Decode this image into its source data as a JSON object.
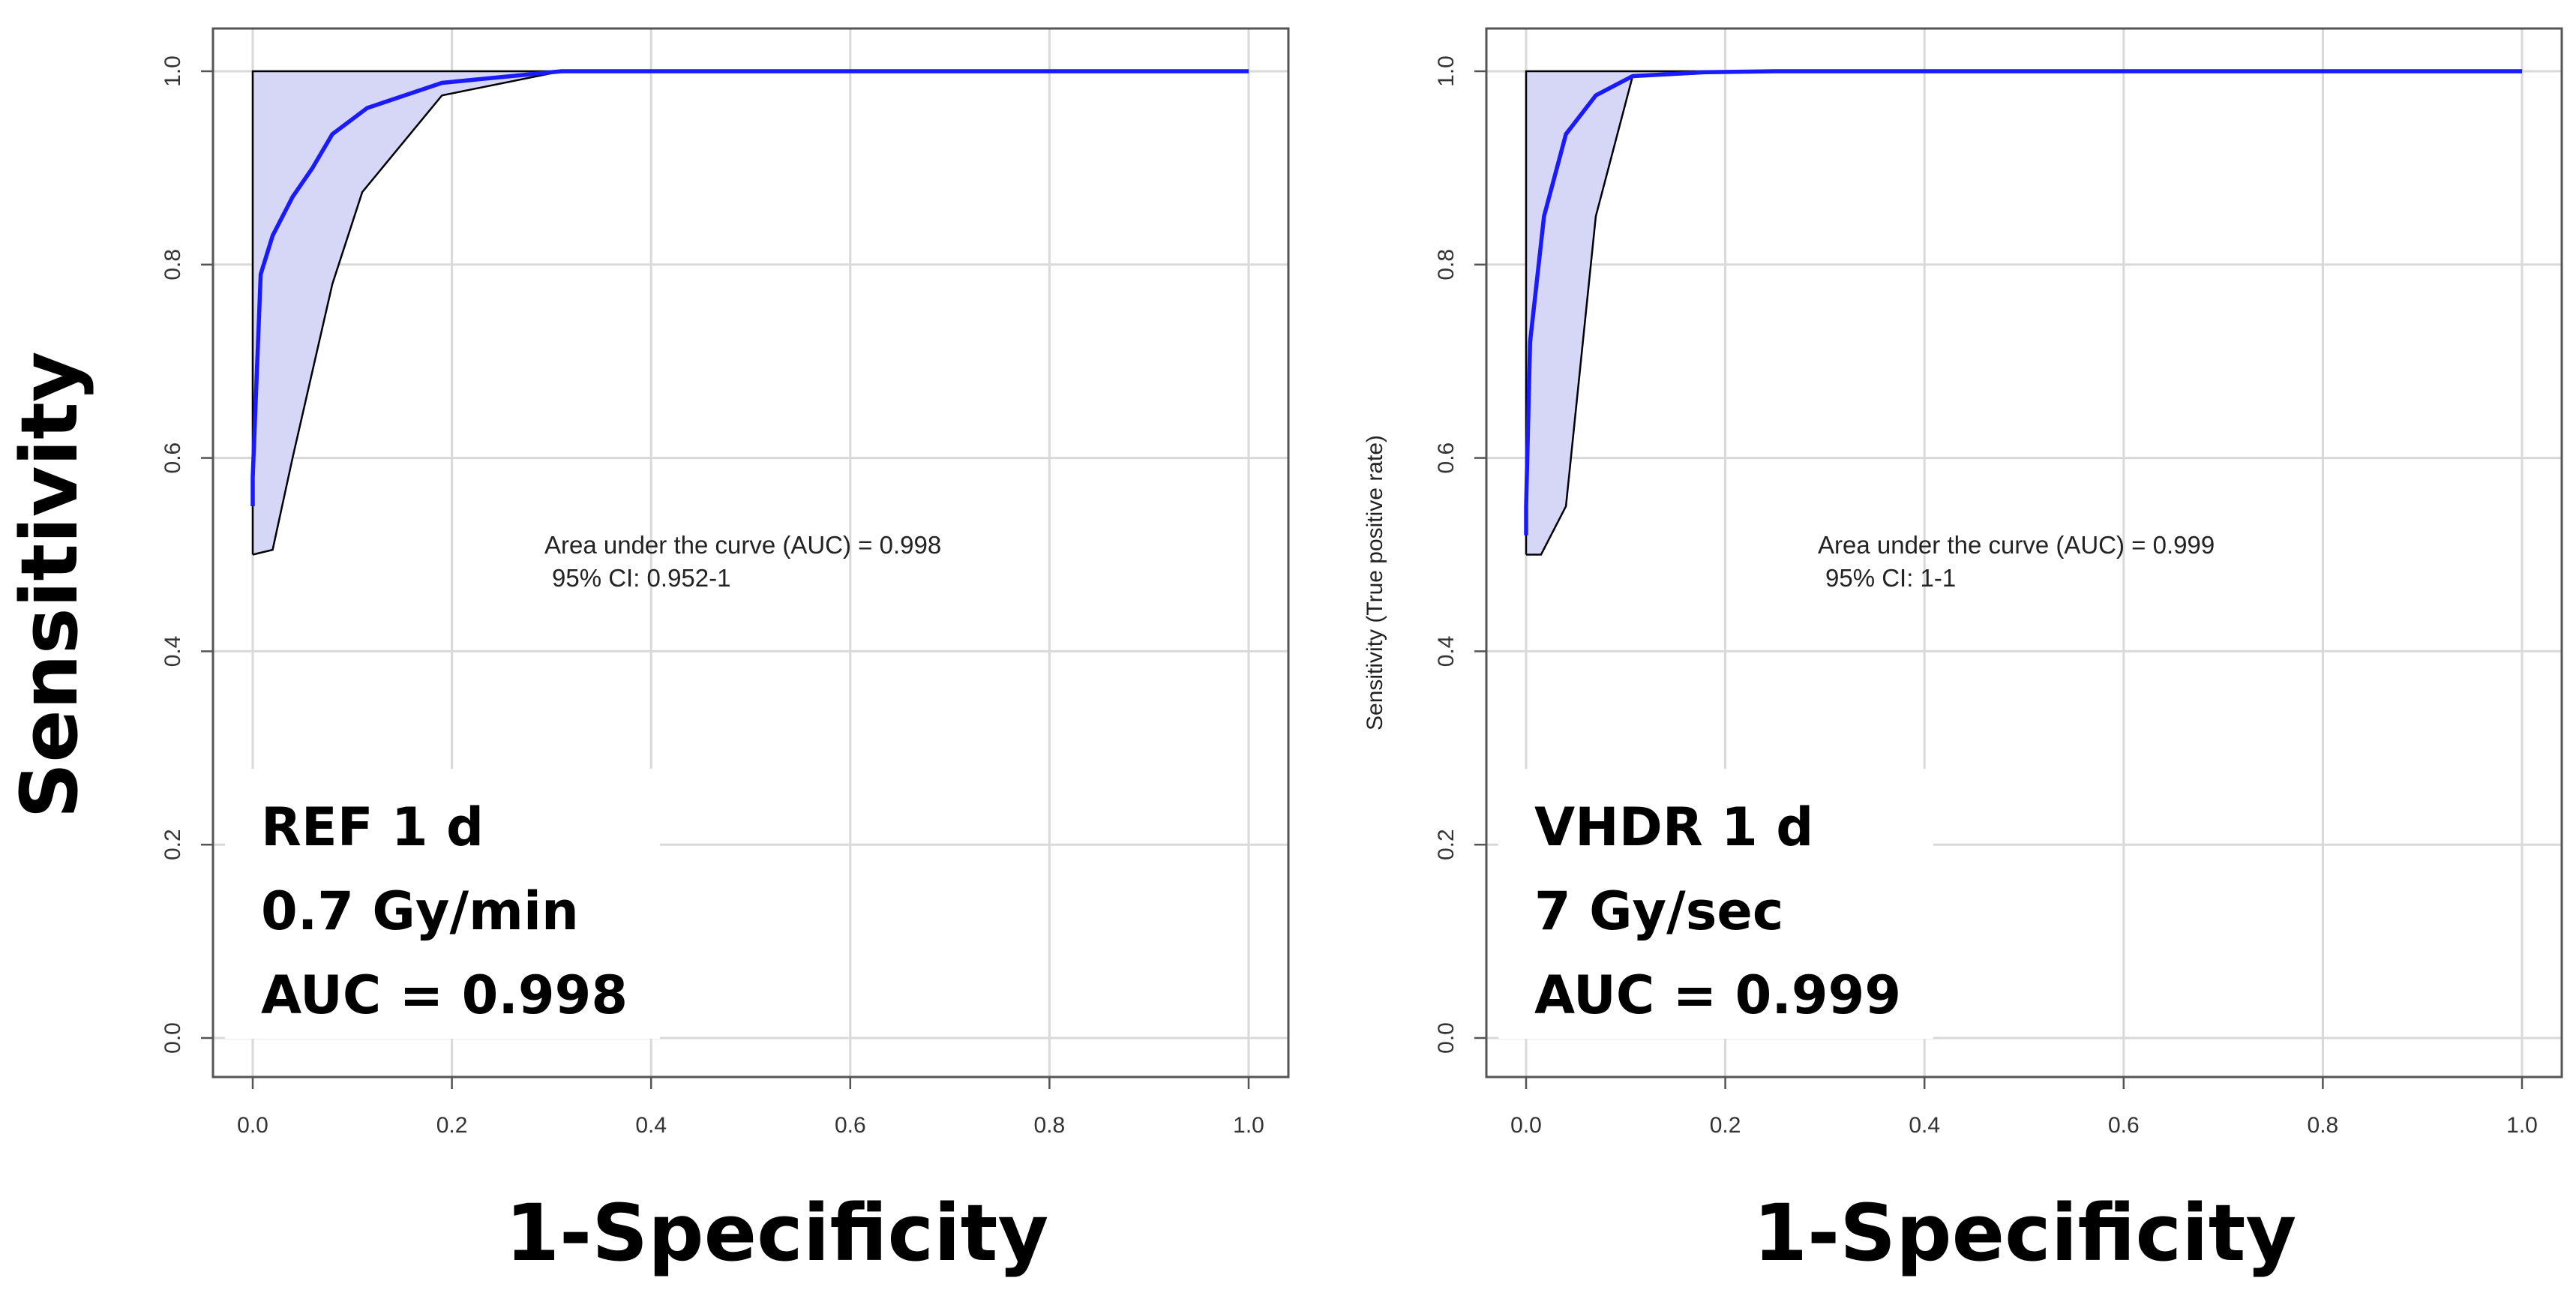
{
  "figure": {
    "left_ylabel": "Sensitivity",
    "colors": {
      "roc": "#1a1aff",
      "ci_fill": "#d6d6f7",
      "ci_line": "#000000",
      "grid": "#d9d9d9",
      "frame": "#555555"
    }
  },
  "chart_data": [
    {
      "type": "line",
      "xlabel": "1-Specificity",
      "ylabel": "",
      "xlim": [
        0,
        1
      ],
      "ylim": [
        0,
        1
      ],
      "x_ticks": [
        "0.0",
        "0.2",
        "0.4",
        "0.6",
        "0.8",
        "1.0"
      ],
      "y_ticks": [
        "0.0",
        "0.2",
        "0.4",
        "0.6",
        "0.8",
        "1.0"
      ],
      "grid": true,
      "auc_text": "Area under the curve (AUC) = 0.998",
      "ci_text": "95% CI: 0.952-1",
      "box_lines": [
        "REF 1 d",
        "0.7 Gy/min",
        "AUC = 0.998"
      ],
      "series": [
        {
          "name": "ROC",
          "x": [
            0.0,
            0.0,
            0.008,
            0.02,
            0.04,
            0.06,
            0.08,
            0.115,
            0.19,
            0.31,
            1.0
          ],
          "y": [
            0.55,
            0.58,
            0.79,
            0.83,
            0.87,
            0.9,
            0.935,
            0.962,
            0.988,
            1.0,
            1.0
          ]
        },
        {
          "name": "CI upper",
          "x": [
            0.0,
            0.0,
            1.0
          ],
          "y": [
            0.5,
            1.0,
            1.0
          ]
        },
        {
          "name": "CI lower",
          "x": [
            0.0,
            0.02,
            0.04,
            0.06,
            0.08,
            0.11,
            0.19,
            0.31,
            1.0
          ],
          "y": [
            0.5,
            0.505,
            0.6,
            0.69,
            0.78,
            0.875,
            0.975,
            1.0,
            1.0
          ]
        }
      ]
    },
    {
      "type": "line",
      "xlabel": "1-Specificity",
      "ylabel": "Sensitivity (True positive rate)",
      "xlim": [
        0,
        1
      ],
      "ylim": [
        0,
        1
      ],
      "x_ticks": [
        "0.0",
        "0.2",
        "0.4",
        "0.6",
        "0.8",
        "1.0"
      ],
      "y_ticks": [
        "0.0",
        "0.2",
        "0.4",
        "0.6",
        "0.8",
        "1.0"
      ],
      "grid": true,
      "auc_text": "Area under the curve (AUC) = 0.999",
      "ci_text": "95% CI: 1-1",
      "box_lines": [
        "VHDR 1 d",
        "7 Gy/sec",
        "AUC = 0.999"
      ],
      "series": [
        {
          "name": "ROC",
          "x": [
            0.0,
            0.0,
            0.004,
            0.018,
            0.04,
            0.07,
            0.107,
            0.18,
            0.25,
            1.0
          ],
          "y": [
            0.52,
            0.55,
            0.72,
            0.85,
            0.935,
            0.975,
            0.995,
            0.999,
            1.0,
            1.0
          ]
        },
        {
          "name": "CI upper",
          "x": [
            0.0,
            0.0,
            1.0
          ],
          "y": [
            0.5,
            1.0,
            1.0
          ]
        },
        {
          "name": "CI lower",
          "x": [
            0.0,
            0.015,
            0.04,
            0.07,
            0.107,
            0.18,
            1.0
          ],
          "y": [
            0.5,
            0.5,
            0.55,
            0.85,
            0.995,
            1.0,
            1.0
          ]
        }
      ]
    }
  ]
}
